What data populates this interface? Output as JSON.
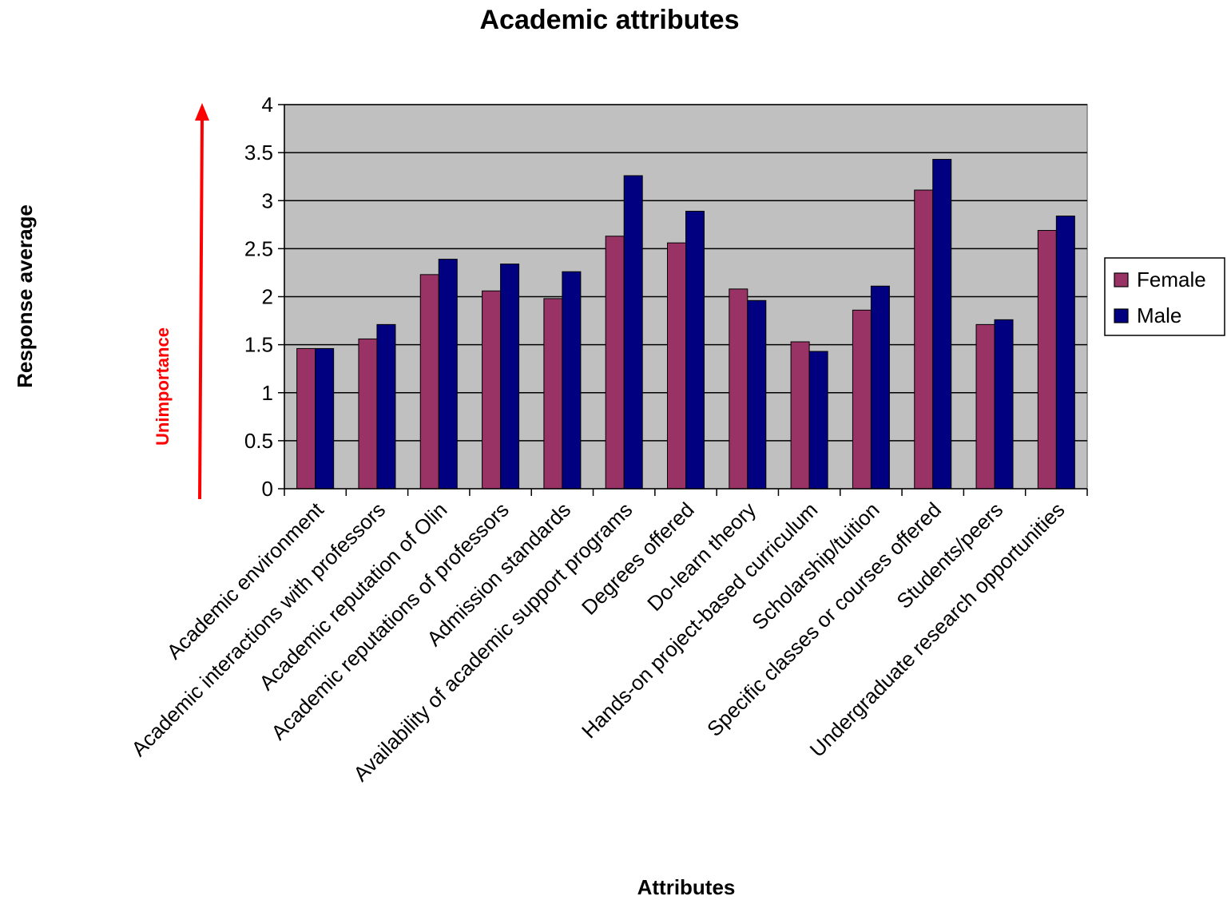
{
  "chart_data": {
    "type": "bar",
    "title": "Academic attributes",
    "xlabel": "Attributes",
    "ylabel": "Response average",
    "annotation": "Unimportance",
    "ylim": [
      0,
      4
    ],
    "yticks": [
      "0",
      "0.5",
      "1",
      "1.5",
      "2",
      "2.5",
      "3",
      "3.5",
      "4"
    ],
    "grid": true,
    "legend_position": "right",
    "categories": [
      "Academic environment",
      "Academic interactions with professors",
      "Academic reputation of Olin",
      "Academic reputations of professors",
      "Admission standards",
      "Availability of academic support programs",
      "Degrees offered",
      "Do-learn theory",
      "Hands-on project-based curriculum",
      "Scholarship/tuition",
      "Specific classes or courses offered",
      "Students/peers",
      "Undergraduate research opportunities"
    ],
    "series": [
      {
        "name": "Female",
        "color": "#993366",
        "values": [
          1.46,
          1.56,
          2.23,
          2.06,
          1.98,
          2.63,
          2.56,
          2.08,
          1.53,
          1.86,
          3.11,
          1.71,
          2.69
        ]
      },
      {
        "name": "Male",
        "color": "#000080",
        "values": [
          1.46,
          1.71,
          2.39,
          2.34,
          2.26,
          3.26,
          2.89,
          1.96,
          1.43,
          2.11,
          3.43,
          1.76,
          2.84
        ]
      }
    ],
    "colors": {
      "plot_background": "#c0c0c0",
      "annotation": "#ff0000"
    }
  }
}
